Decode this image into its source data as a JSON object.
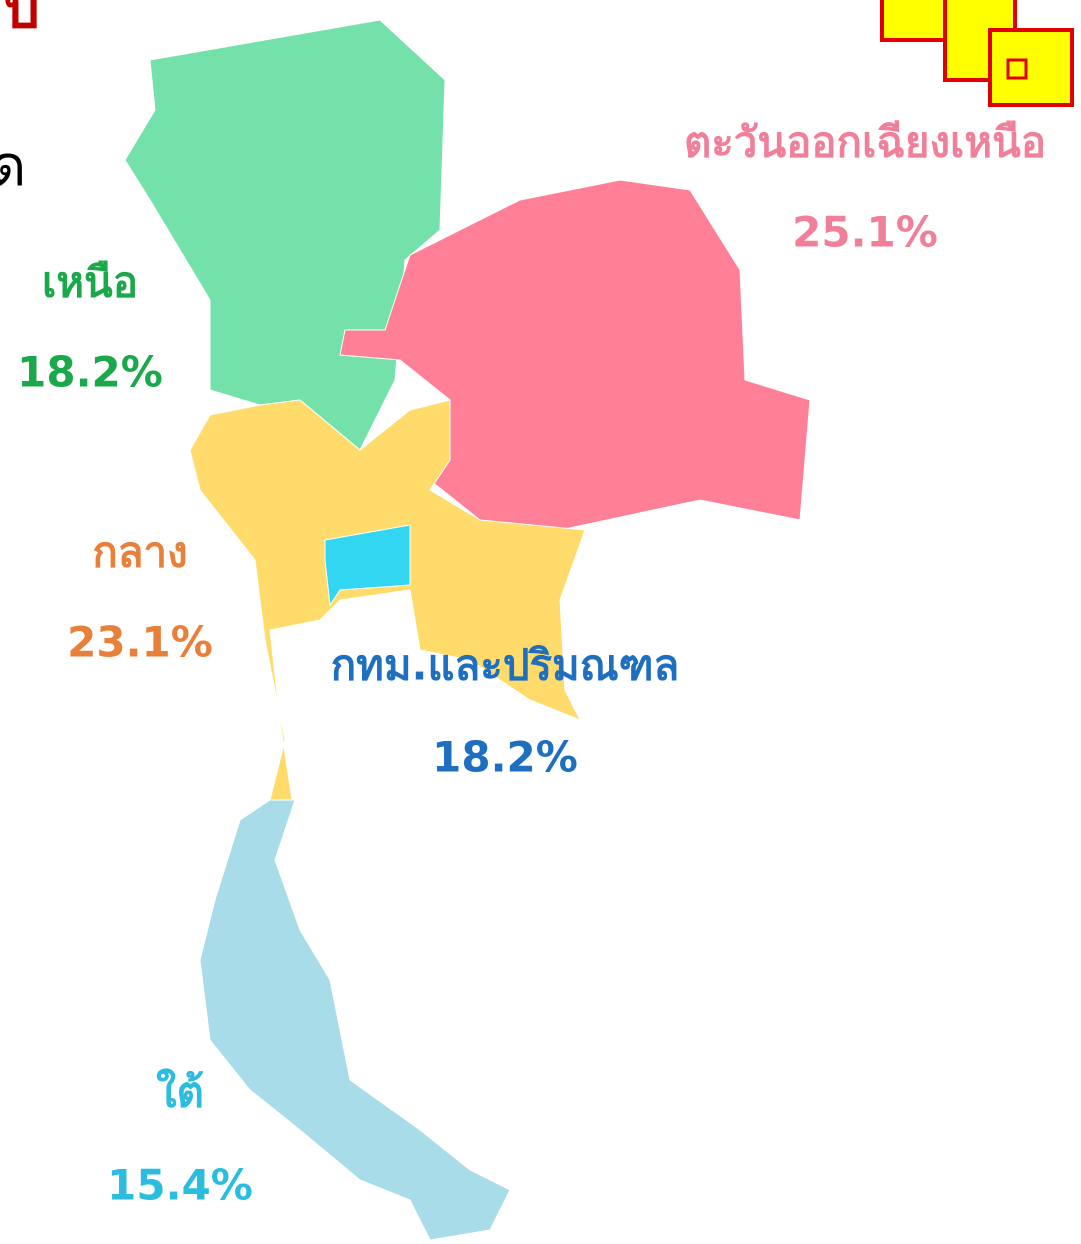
{
  "cropped_text": [
    "บ",
    "ด"
  ],
  "regions": [
    {
      "name": "เหนือ",
      "share": "18.2%",
      "fill": "#74e0aa",
      "label_color": "#1aa84a"
    },
    {
      "name": "ตะวันออกเฉียงเหนือ",
      "share": "25.1%",
      "fill": "#ff7f96",
      "label_color": "#f0809a"
    },
    {
      "name": "กลาง",
      "share": "23.1%",
      "fill": "#ffdb6b",
      "label_color": "#e8803a"
    },
    {
      "name": "กทม.และปริมณฑล",
      "share": "18.2%",
      "fill": "#33d6f0",
      "label_color": "#1e6fc0"
    },
    {
      "name": "ใต้",
      "share": "15.4%",
      "fill": "#a8dce8",
      "label_color": "#2bbde0"
    }
  ]
}
